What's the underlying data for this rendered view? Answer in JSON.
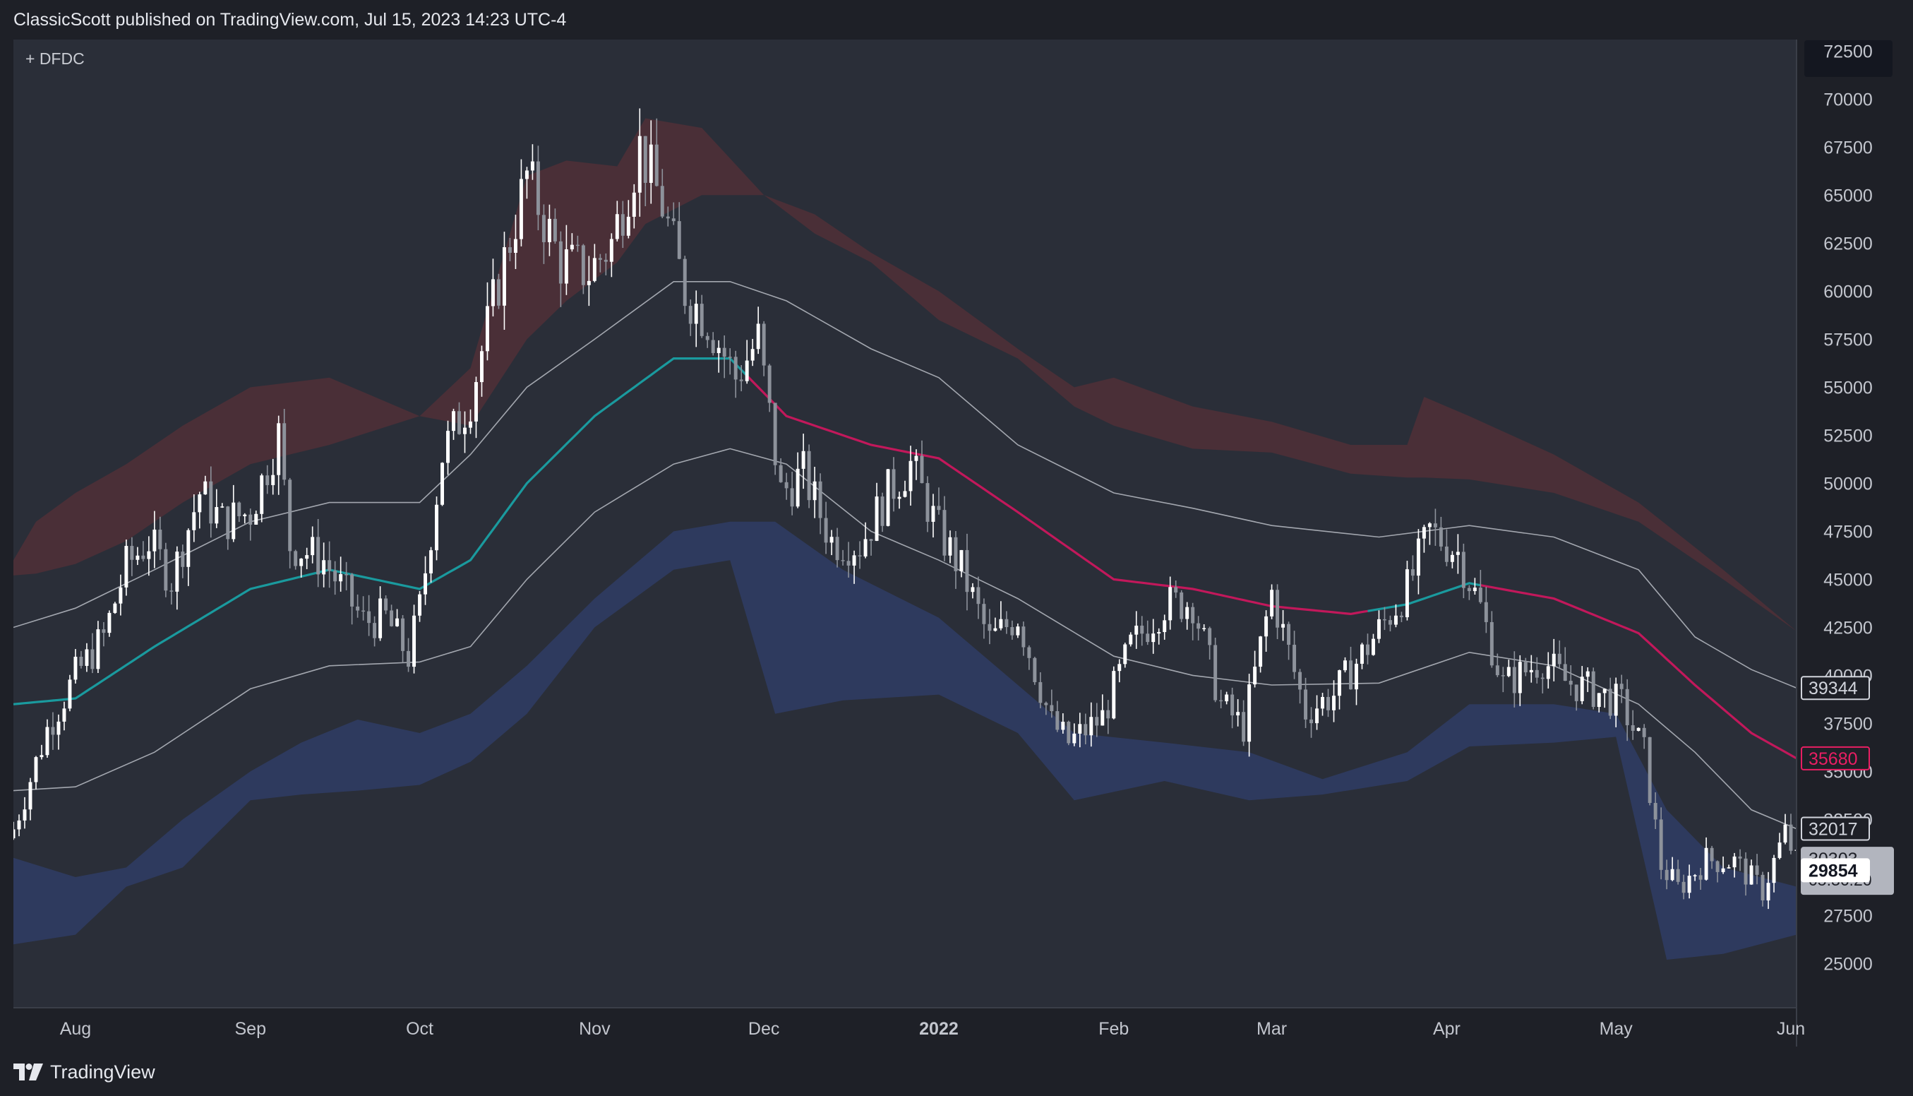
{
  "header": {
    "published": "ClassicScott published on TradingView.com, Jul 15, 2023 14:23 UTC-4"
  },
  "legend": {
    "symbol_label": "+ DFDC"
  },
  "footer": {
    "brand": "TradingView",
    "logo_icon": "tradingview-logo-icon"
  },
  "colors": {
    "background": "#1e2027",
    "plot_bg": "#2a2e38",
    "upper_band": "#4a2f37",
    "lower_band": "#2e3a5e",
    "envelope_line": "#b9bcc4",
    "basis_bull": "#1a9a9e",
    "basis_bear": "#c2185b",
    "candle_up": "#ffffff",
    "candle_down": "#8d929b"
  },
  "chart_data": {
    "type": "candlestick",
    "title": "",
    "xlabel": "",
    "ylabel": "",
    "date_range": [
      "2021-07-21",
      "2022-06-02"
    ],
    "ylim": [
      22700,
      73100
    ],
    "y_ticks": [
      25000,
      27500,
      30000,
      32500,
      35000,
      37500,
      40000,
      42500,
      45000,
      47500,
      50000,
      52500,
      55000,
      57500,
      60000,
      62500,
      65000,
      67500,
      70000,
      72500
    ],
    "x_ticks": [
      {
        "label": "Aug",
        "date": "2021-08-01",
        "bold": false
      },
      {
        "label": "Sep",
        "date": "2021-09-01",
        "bold": false
      },
      {
        "label": "Oct",
        "date": "2021-10-01",
        "bold": false
      },
      {
        "label": "Nov",
        "date": "2021-11-01",
        "bold": false
      },
      {
        "label": "Dec",
        "date": "2021-12-01",
        "bold": false
      },
      {
        "label": "2022",
        "date": "2022-01-01",
        "bold": true
      },
      {
        "label": "Feb",
        "date": "2022-02-01",
        "bold": false
      },
      {
        "label": "Mar",
        "date": "2022-03-01",
        "bold": false
      },
      {
        "label": "Apr",
        "date": "2022-04-01",
        "bold": false
      },
      {
        "label": "May",
        "date": "2022-05-01",
        "bold": false
      },
      {
        "label": "Jun",
        "date": "2022-06-01",
        "bold": false
      }
    ],
    "price_close": [
      [
        "2021-07-21",
        32000
      ],
      [
        "2021-07-27",
        37200
      ],
      [
        "2021-08-01",
        40000
      ],
      [
        "2021-08-06",
        42000
      ],
      [
        "2021-08-10",
        45700
      ],
      [
        "2021-08-14",
        47000
      ],
      [
        "2021-08-18",
        45000
      ],
      [
        "2021-08-23",
        49500
      ],
      [
        "2021-08-27",
        48000
      ],
      [
        "2021-09-01",
        48500
      ],
      [
        "2021-09-06",
        52500
      ],
      [
        "2021-09-08",
        46800
      ],
      [
        "2021-09-14",
        46000
      ],
      [
        "2021-09-21",
        42800
      ],
      [
        "2021-09-25",
        43000
      ],
      [
        "2021-09-29",
        41000
      ],
      [
        "2021-10-01",
        43500
      ],
      [
        "2021-10-05",
        51500
      ],
      [
        "2021-10-10",
        54500
      ],
      [
        "2021-10-15",
        60500
      ],
      [
        "2021-10-20",
        66000
      ],
      [
        "2021-10-26",
        61500
      ],
      [
        "2021-10-31",
        61000
      ],
      [
        "2021-11-04",
        62500
      ],
      [
        "2021-11-09",
        67500
      ],
      [
        "2021-11-13",
        64500
      ],
      [
        "2021-11-17",
        60000
      ],
      [
        "2021-11-21",
        58500
      ],
      [
        "2021-11-26",
        55500
      ],
      [
        "2021-11-30",
        57500
      ],
      [
        "2021-12-04",
        49500
      ],
      [
        "2021-12-08",
        50500
      ],
      [
        "2021-12-13",
        47000
      ],
      [
        "2021-12-18",
        46800
      ],
      [
        "2021-12-23",
        49500
      ],
      [
        "2021-12-27",
        51000
      ],
      [
        "2022-01-01",
        47500
      ],
      [
        "2022-01-05",
        45500
      ],
      [
        "2022-01-10",
        41800
      ],
      [
        "2022-01-15",
        43100
      ],
      [
        "2022-01-21",
        37500
      ],
      [
        "2022-01-24",
        36500
      ],
      [
        "2022-01-30",
        37800
      ],
      [
        "2022-02-04",
        41500
      ],
      [
        "2022-02-10",
        43700
      ],
      [
        "2022-02-15",
        43800
      ],
      [
        "2022-02-20",
        38500
      ],
      [
        "2022-02-24",
        37300
      ],
      [
        "2022-03-01",
        44300
      ],
      [
        "2022-03-07",
        38100
      ],
      [
        "2022-03-12",
        39000
      ],
      [
        "2022-03-18",
        41500
      ],
      [
        "2022-03-25",
        44500
      ],
      [
        "2022-03-29",
        47500
      ],
      [
        "2022-04-03",
        46400
      ],
      [
        "2022-04-07",
        43500
      ],
      [
        "2022-04-11",
        39500
      ],
      [
        "2022-04-18",
        40800
      ],
      [
        "2022-04-22",
        39700
      ],
      [
        "2022-04-27",
        39200
      ],
      [
        "2022-05-02",
        38500
      ],
      [
        "2022-05-06",
        36000
      ],
      [
        "2022-05-09",
        30100
      ],
      [
        "2022-05-12",
        28900
      ],
      [
        "2022-05-17",
        30400
      ],
      [
        "2022-05-22",
        30300
      ],
      [
        "2022-05-27",
        28800
      ],
      [
        "2022-05-31",
        31800
      ],
      [
        "2022-06-02",
        30303
      ]
    ],
    "basis_line": [
      [
        "2021-07-21",
        38500
      ],
      [
        "2021-08-01",
        38800
      ],
      [
        "2021-08-15",
        41500
      ],
      [
        "2021-09-01",
        44500
      ],
      [
        "2021-09-15",
        45500
      ],
      [
        "2021-10-01",
        44500
      ],
      [
        "2021-10-10",
        46000
      ],
      [
        "2021-10-20",
        50000
      ],
      [
        "2021-11-01",
        53500
      ],
      [
        "2021-11-15",
        56500
      ],
      [
        "2021-11-25",
        56500
      ],
      [
        "2021-12-05",
        53500
      ],
      [
        "2021-12-20",
        52000
      ],
      [
        "2022-01-01",
        51300
      ],
      [
        "2022-01-15",
        48500
      ],
      [
        "2022-02-01",
        45000
      ],
      [
        "2022-02-15",
        44500
      ],
      [
        "2022-03-01",
        43600
      ],
      [
        "2022-03-15",
        43200
      ],
      [
        "2022-03-25",
        43700
      ],
      [
        "2022-04-05",
        44800
      ],
      [
        "2022-04-20",
        44000
      ],
      [
        "2022-05-05",
        42200
      ],
      [
        "2022-05-15",
        39500
      ],
      [
        "2022-05-25",
        37000
      ],
      [
        "2022-06-02",
        35680
      ]
    ],
    "basis_bull_until": "2021-11-28",
    "basis_bull_from": "2022-03-18",
    "basis_bear_from": "2022-04-07",
    "envelope_upper": [
      [
        "2021-07-21",
        42500
      ],
      [
        "2021-08-01",
        43500
      ],
      [
        "2021-08-15",
        45500
      ],
      [
        "2021-09-01",
        48000
      ],
      [
        "2021-09-15",
        49000
      ],
      [
        "2021-10-01",
        49000
      ],
      [
        "2021-10-10",
        51500
      ],
      [
        "2021-10-20",
        55000
      ],
      [
        "2021-11-01",
        57500
      ],
      [
        "2021-11-15",
        60500
      ],
      [
        "2021-11-25",
        60500
      ],
      [
        "2021-12-05",
        59500
      ],
      [
        "2021-12-20",
        57000
      ],
      [
        "2022-01-01",
        55500
      ],
      [
        "2022-01-15",
        52000
      ],
      [
        "2022-02-01",
        49500
      ],
      [
        "2022-02-15",
        48700
      ],
      [
        "2022-03-01",
        47800
      ],
      [
        "2022-03-20",
        47200
      ],
      [
        "2022-04-05",
        47800
      ],
      [
        "2022-04-20",
        47200
      ],
      [
        "2022-05-05",
        45500
      ],
      [
        "2022-05-15",
        42000
      ],
      [
        "2022-05-25",
        40300
      ],
      [
        "2022-06-02",
        39344
      ]
    ],
    "envelope_lower": [
      [
        "2021-07-21",
        34000
      ],
      [
        "2021-08-01",
        34200
      ],
      [
        "2021-08-15",
        36000
      ],
      [
        "2021-09-01",
        39300
      ],
      [
        "2021-09-15",
        40500
      ],
      [
        "2021-10-01",
        40700
      ],
      [
        "2021-10-10",
        41500
      ],
      [
        "2021-10-20",
        45000
      ],
      [
        "2021-11-01",
        48500
      ],
      [
        "2021-11-15",
        51000
      ],
      [
        "2021-11-25",
        51800
      ],
      [
        "2021-12-05",
        51000
      ],
      [
        "2021-12-20",
        47500
      ],
      [
        "2022-01-01",
        46000
      ],
      [
        "2022-01-15",
        44000
      ],
      [
        "2022-02-01",
        41000
      ],
      [
        "2022-02-15",
        40000
      ],
      [
        "2022-03-01",
        39500
      ],
      [
        "2022-03-20",
        39600
      ],
      [
        "2022-04-05",
        41200
      ],
      [
        "2022-04-20",
        40500
      ],
      [
        "2022-05-05",
        38500
      ],
      [
        "2022-05-15",
        36000
      ],
      [
        "2022-05-25",
        33000
      ],
      [
        "2022-06-02",
        32017
      ]
    ],
    "upper_band": [
      [
        "2021-07-21",
        46000,
        45200
      ],
      [
        "2021-07-25",
        48000,
        45300
      ],
      [
        "2021-08-01",
        49500,
        45800
      ],
      [
        "2021-08-10",
        51000,
        47000
      ],
      [
        "2021-08-20",
        53000,
        49000
      ],
      [
        "2021-09-01",
        55000,
        51000
      ],
      [
        "2021-09-15",
        55500,
        52000
      ],
      [
        "2021-10-01",
        53500,
        53500
      ],
      [
        "2021-10-10",
        56000,
        53000
      ],
      [
        "2021-10-20",
        66000,
        57500
      ],
      [
        "2021-10-27",
        66800,
        59500
      ],
      [
        "2021-11-05",
        66500,
        61500
      ],
      [
        "2021-11-10",
        69000,
        63500
      ],
      [
        "2021-11-20",
        68500,
        65000
      ],
      [
        "2021-12-01",
        65000,
        65000
      ],
      [
        "2021-12-10",
        64000,
        63000
      ],
      [
        "2021-12-20",
        62000,
        61500
      ],
      [
        "2022-01-01",
        60000,
        58500
      ],
      [
        "2022-01-15",
        57000,
        56500
      ],
      [
        "2022-01-25",
        55000,
        54000
      ],
      [
        "2022-02-01",
        55500,
        53000
      ],
      [
        "2022-02-15",
        54000,
        51800
      ],
      [
        "2022-03-01",
        53200,
        51600
      ],
      [
        "2022-03-15",
        52000,
        50500
      ],
      [
        "2022-03-25",
        52000,
        50300
      ],
      [
        "2022-03-28",
        54500,
        50300
      ],
      [
        "2022-04-05",
        53500,
        50200
      ],
      [
        "2022-04-20",
        51500,
        49500
      ],
      [
        "2022-05-05",
        49000,
        48000
      ],
      [
        "2022-05-20",
        45500,
        45000
      ],
      [
        "2022-06-02",
        42300,
        42300
      ]
    ],
    "lower_band": [
      [
        "2021-07-21",
        30500,
        26000
      ],
      [
        "2021-08-01",
        29500,
        26500
      ],
      [
        "2021-08-10",
        30000,
        29000
      ],
      [
        "2021-08-20",
        32500,
        30000
      ],
      [
        "2021-09-01",
        35000,
        33500
      ],
      [
        "2021-09-10",
        36500,
        33800
      ],
      [
        "2021-09-20",
        37700,
        34000
      ],
      [
        "2021-10-01",
        37000,
        34300
      ],
      [
        "2021-10-10",
        38000,
        35500
      ],
      [
        "2021-10-20",
        40500,
        38000
      ],
      [
        "2021-11-01",
        44000,
        42500
      ],
      [
        "2021-11-15",
        47500,
        45500
      ],
      [
        "2021-11-25",
        48000,
        46000
      ],
      [
        "2021-12-03",
        48000,
        38000
      ],
      [
        "2021-12-15",
        45500,
        38700
      ],
      [
        "2022-01-01",
        43000,
        39000
      ],
      [
        "2022-01-15",
        39500,
        37000
      ],
      [
        "2022-01-25",
        37000,
        33500
      ],
      [
        "2022-02-10",
        36500,
        34500
      ],
      [
        "2022-02-25",
        36000,
        33500
      ],
      [
        "2022-03-10",
        34600,
        33800
      ],
      [
        "2022-03-25",
        36000,
        34500
      ],
      [
        "2022-04-05",
        38500,
        36300
      ],
      [
        "2022-04-20",
        38500,
        36500
      ],
      [
        "2022-05-01",
        38000,
        36800
      ],
      [
        "2022-05-10",
        33000,
        25200
      ],
      [
        "2022-05-20",
        30000,
        25500
      ],
      [
        "2022-06-02",
        29000,
        26500
      ]
    ],
    "price_labels": [
      {
        "value": 39344,
        "text": "39344",
        "color": "#d1d4dc",
        "bg": "#1e2027",
        "border": "#d1d4dc",
        "bold": false
      },
      {
        "value": 35680,
        "text": "35680",
        "color": "#e91e63",
        "bg": "#1e2027",
        "border": "#e91e63",
        "bold": false
      },
      {
        "value": 32017,
        "text": "32017",
        "color": "#d1d4dc",
        "bg": "#1e2027",
        "border": "#d1d4dc",
        "bold": false
      },
      {
        "value": 30303,
        "text": "30303",
        "sub": "05:36:20",
        "color": "#1e2027",
        "bg": "#b2b5be",
        "border": "#b2b5be",
        "bold": false
      },
      {
        "value": 29854,
        "text": "29854",
        "color": "#131722",
        "bg": "#ffffff",
        "border": "#ffffff",
        "bold": true
      }
    ]
  }
}
